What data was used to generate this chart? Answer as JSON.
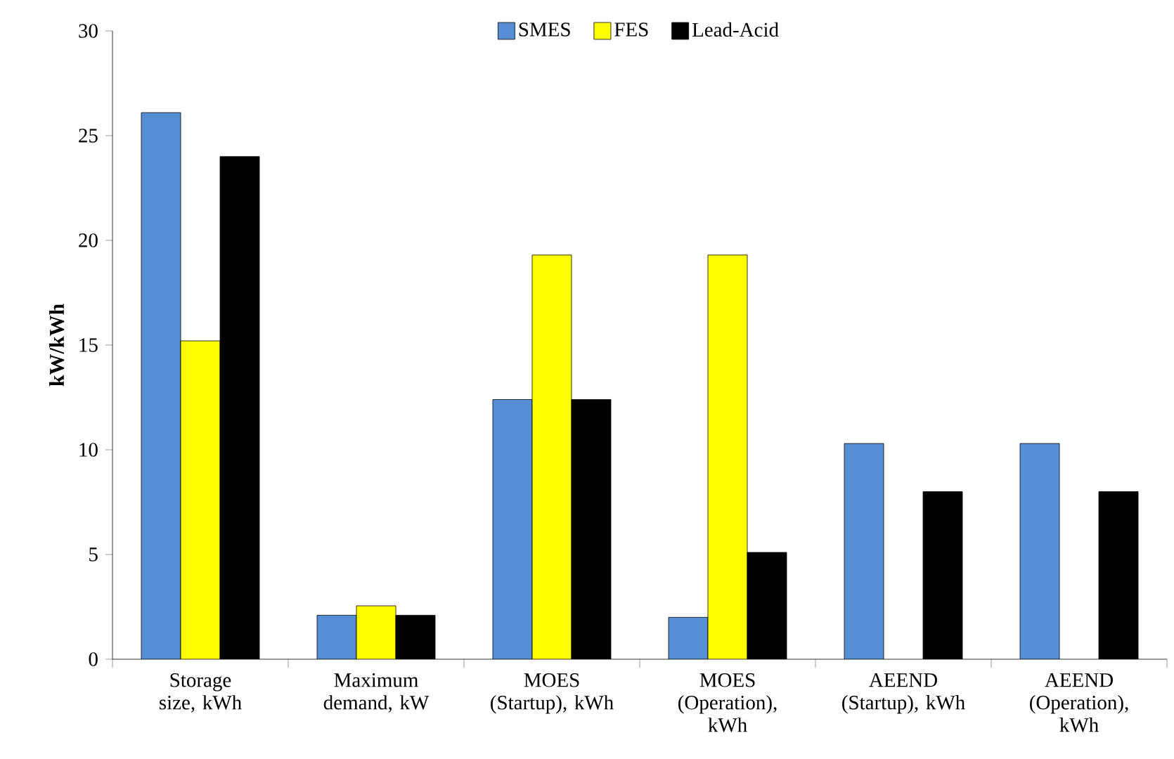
{
  "chart_data": {
    "type": "bar",
    "ylabel": "kW/kWh",
    "categories": [
      "Storage size, kWh",
      "Maximum demand, kW",
      "MOES (Startup), kWh",
      "MOES (Operation), kWh",
      "AEEND (Startup), kWh",
      "AEEND (Operation), kWh"
    ],
    "series": [
      {
        "name": "SMES",
        "color": "#558ed5",
        "values": [
          26.1,
          2.1,
          12.4,
          2.0,
          10.3,
          10.3
        ]
      },
      {
        "name": "FES",
        "color": "#ffff00",
        "values": [
          15.2,
          2.55,
          19.3,
          19.3,
          null,
          null
        ]
      },
      {
        "name": "Lead-Acid",
        "color": "#000000",
        "values": [
          24.0,
          2.1,
          12.4,
          5.1,
          8.0,
          8.0
        ]
      }
    ],
    "ylim": [
      0,
      30
    ],
    "yticks": [
      0,
      5,
      10,
      15,
      20,
      25,
      30
    ],
    "legend": "top"
  }
}
